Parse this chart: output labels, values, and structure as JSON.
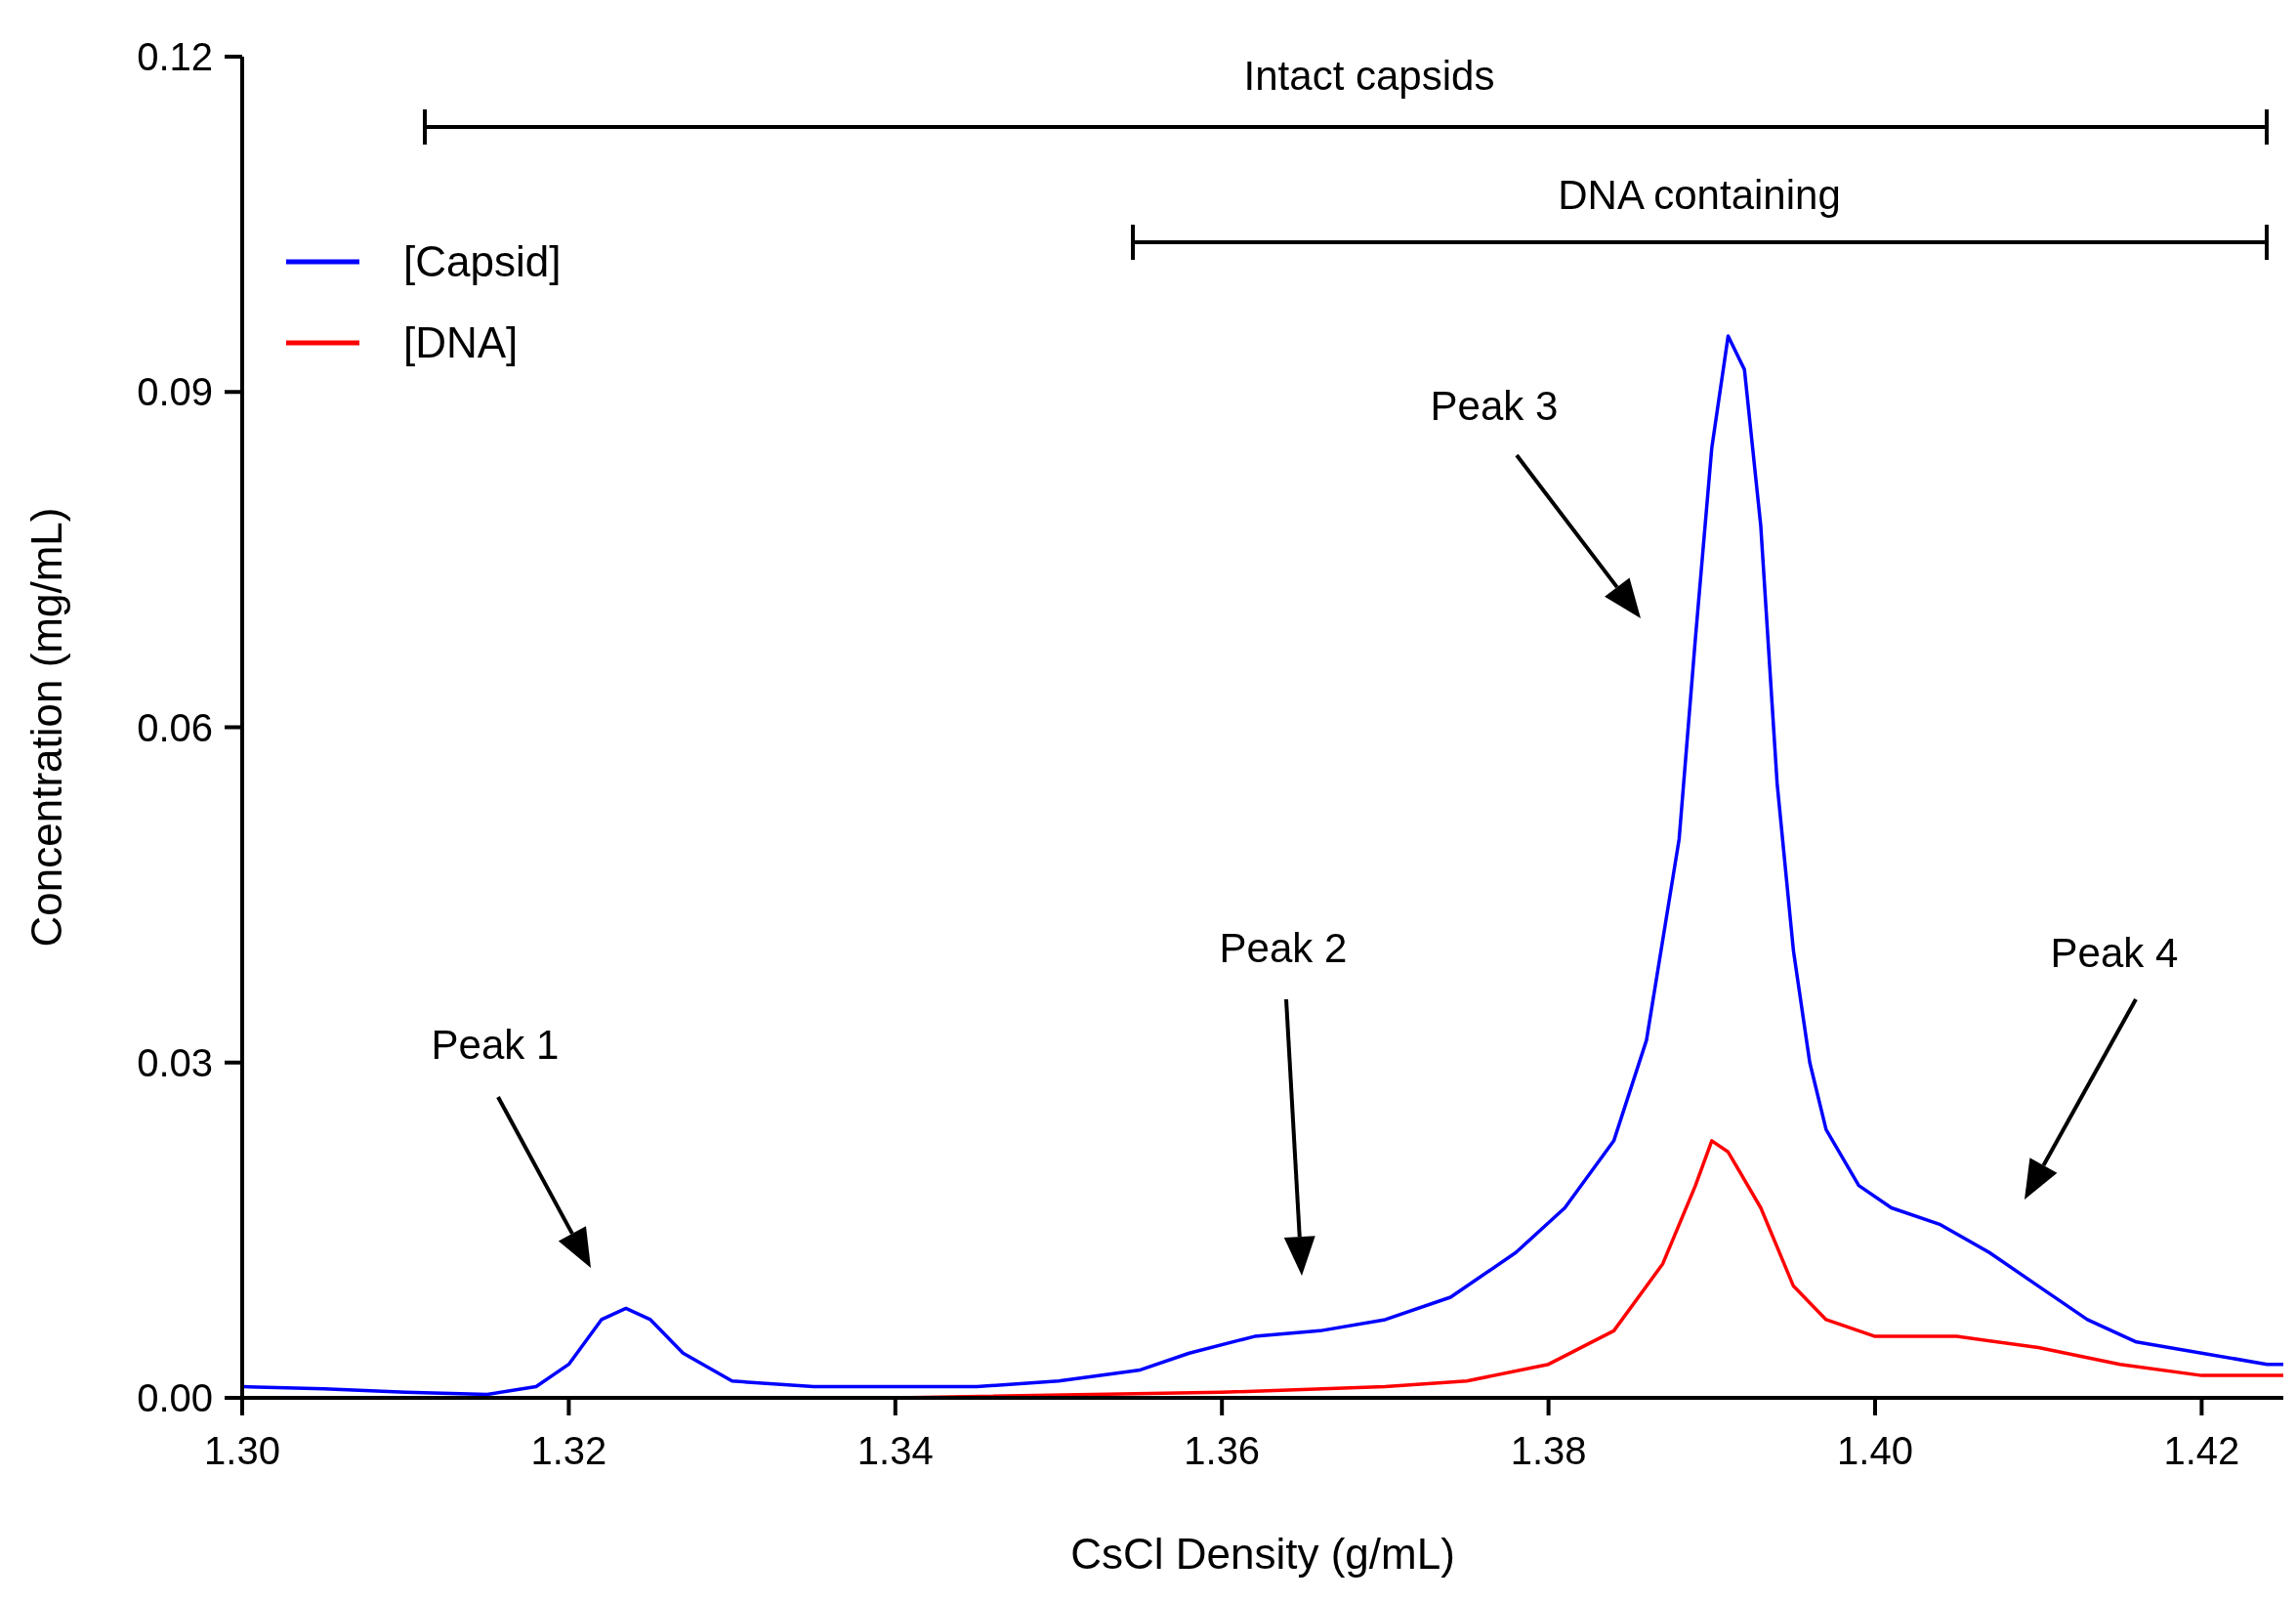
{
  "chart_data": {
    "type": "line",
    "xlabel": "CsCl Density (g/mL)",
    "ylabel": "Concentration (mg/mL)",
    "xlim": [
      1.3,
      1.425
    ],
    "xticks": [
      {
        "value": 1.3,
        "label": "1.30"
      },
      1.32,
      1.34,
      1.36,
      1.38,
      {
        "value": 1.4,
        "label": "1.40"
      },
      1.42
    ],
    "ylim": [
      0,
      0.12
    ],
    "yticks": [
      {
        "value": 0,
        "label": "0.00"
      },
      0.03,
      0.06,
      0.09,
      {
        "value": 0.12,
        "label": "0.12"
      }
    ],
    "grid": false,
    "legend": "top left",
    "line_style": "solid",
    "marker": "none",
    "series": [
      {
        "name": "[Capsid]",
        "color": "#0000ff",
        "x": [
          1.3,
          1.305,
          1.31,
          1.315,
          1.318,
          1.32,
          1.322,
          1.3235,
          1.325,
          1.327,
          1.33,
          1.335,
          1.34,
          1.345,
          1.35,
          1.355,
          1.358,
          1.362,
          1.366,
          1.37,
          1.374,
          1.378,
          1.381,
          1.384,
          1.386,
          1.388,
          1.389,
          1.39,
          1.391,
          1.392,
          1.393,
          1.394,
          1.395,
          1.396,
          1.397,
          1.399,
          1.401,
          1.404,
          1.407,
          1.41,
          1.413,
          1.416,
          1.42,
          1.424,
          1.425
        ],
        "values": [
          0.001,
          0.0008,
          0.0005,
          0.0003,
          0.001,
          0.003,
          0.007,
          0.008,
          0.007,
          0.004,
          0.0015,
          0.001,
          0.001,
          0.001,
          0.0015,
          0.0025,
          0.004,
          0.0055,
          0.006,
          0.007,
          0.009,
          0.013,
          0.017,
          0.023,
          0.032,
          0.05,
          0.068,
          0.085,
          0.095,
          0.092,
          0.078,
          0.055,
          0.04,
          0.03,
          0.024,
          0.019,
          0.017,
          0.0155,
          0.013,
          0.01,
          0.007,
          0.005,
          0.004,
          0.003,
          0.003
        ]
      },
      {
        "name": "[DNA]",
        "color": "#ff0000",
        "x": [
          1.3,
          1.32,
          1.34,
          1.36,
          1.37,
          1.375,
          1.38,
          1.384,
          1.387,
          1.389,
          1.39,
          1.391,
          1.393,
          1.395,
          1.397,
          1.4,
          1.405,
          1.41,
          1.415,
          1.42,
          1.425
        ],
        "values": [
          0,
          0,
          0,
          0.0005,
          0.001,
          0.0015,
          0.003,
          0.006,
          0.012,
          0.019,
          0.023,
          0.022,
          0.017,
          0.01,
          0.007,
          0.0055,
          0.0055,
          0.0045,
          0.003,
          0.002,
          0.002
        ]
      }
    ],
    "annotations": [
      "Intact capsids",
      "DNA containing",
      "Peak 1",
      "Peak 2",
      "Peak 3",
      "Peak 4"
    ]
  }
}
